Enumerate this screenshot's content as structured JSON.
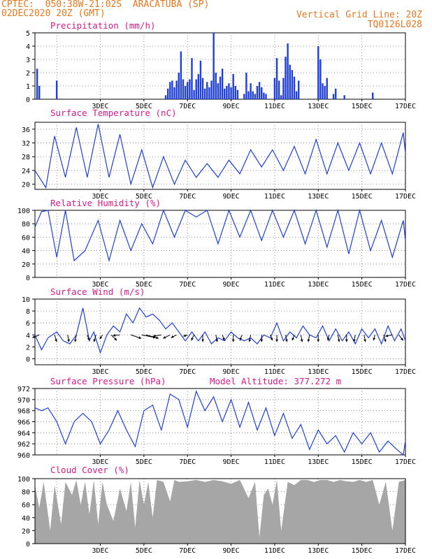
{
  "header": {
    "line1": "CPTEC:  050:38W-21:02S  ARACATUBA (SP)",
    "line2": "02DEC2020 20Z (GMT)",
    "right1": "Vertical Grid Line: 20Z",
    "right2": "TQ0126L028"
  },
  "colors": {
    "line": "#1f3fd6",
    "bar": "#1f3fd6",
    "cloud": "#a6a6a6",
    "title": "#d81b8a",
    "header": "#e8781e"
  },
  "chart_data": [
    {
      "id": "precip",
      "type": "bar",
      "title": "Precipitation (mm/h)",
      "ylim": [
        0,
        5
      ],
      "yticks": [
        0,
        1,
        2,
        3,
        4,
        5
      ],
      "xticks": [
        "3DEC",
        "5DEC",
        "7DEC",
        "9DEC",
        "11DEC",
        "13DEC",
        "15DEC",
        "17DEC"
      ],
      "x": [
        0.1,
        0.2,
        1.0,
        6.0,
        6.1,
        6.2,
        6.3,
        6.4,
        6.5,
        6.6,
        6.7,
        6.8,
        6.9,
        7.0,
        7.1,
        7.2,
        7.3,
        7.4,
        7.5,
        7.6,
        7.7,
        7.8,
        7.9,
        8.0,
        8.1,
        8.2,
        8.3,
        8.4,
        8.5,
        8.6,
        8.7,
        8.8,
        8.9,
        9.0,
        9.1,
        9.2,
        9.3,
        9.6,
        9.7,
        9.8,
        9.9,
        10.0,
        10.1,
        10.2,
        10.3,
        10.4,
        10.5,
        10.6,
        11.0,
        11.1,
        11.2,
        11.3,
        11.4,
        11.5,
        11.6,
        11.7,
        11.8,
        11.9,
        12.0,
        12.1,
        13.0,
        13.1,
        13.2,
        13.3,
        13.4,
        13.7,
        13.8,
        14.2,
        15.5
      ],
      "values": [
        2.3,
        1.0,
        1.4,
        0.3,
        0.8,
        1.3,
        1.4,
        0.9,
        1.4,
        2.0,
        3.6,
        1.5,
        1.0,
        1.3,
        1.5,
        3.1,
        0.7,
        1.5,
        1.9,
        2.9,
        1.6,
        0.8,
        1.3,
        0.9,
        1.4,
        5.0,
        2.0,
        1.2,
        1.7,
        2.3,
        0.8,
        1.0,
        1.2,
        0.9,
        1.9,
        1.0,
        0.7,
        0.4,
        2.0,
        0.6,
        1.2,
        0.6,
        0.4,
        1.0,
        1.3,
        0.9,
        0.5,
        0.4,
        1.6,
        3.1,
        1.4,
        0.3,
        1.6,
        3.2,
        4.2,
        2.6,
        2.2,
        1.7,
        0.6,
        1.4,
        4.0,
        3.0,
        1.2,
        1.0,
        1.6,
        0.4,
        0.8,
        0.3,
        0.5
      ]
    },
    {
      "id": "temp",
      "type": "line",
      "title": "Surface Temperature (nC)",
      "ylim": [
        18.5,
        38
      ],
      "yticks": [
        20,
        24,
        28,
        32,
        36
      ],
      "xticks": [
        "3DEC",
        "5DEC",
        "7DEC",
        "9DEC",
        "11DEC",
        "13DEC",
        "15DEC",
        "17DEC"
      ],
      "series": [
        {
          "x": [
            0,
            0.5,
            0.9,
            1.4,
            1.9,
            2.4,
            2.9,
            3.4,
            3.9,
            4.4,
            4.9,
            5.4,
            5.9,
            6.4,
            6.9,
            7.4,
            7.9,
            8.4,
            8.9,
            9.4,
            9.9,
            10.4,
            10.9,
            11.4,
            11.9,
            12.4,
            12.9,
            13.4,
            13.9,
            14.4,
            14.9,
            15.4,
            15.9,
            16.4,
            16.9,
            17.0
          ],
          "y": [
            24,
            19,
            34,
            22,
            36.5,
            22,
            37.5,
            22,
            34.5,
            20,
            30,
            19,
            28,
            20,
            27,
            22,
            26,
            22,
            27,
            23,
            30,
            25,
            30,
            24,
            31,
            23,
            33,
            23,
            32,
            24,
            32,
            23,
            32,
            23,
            35,
            29
          ]
        }
      ]
    },
    {
      "id": "rh",
      "type": "line",
      "title": "Relative Humidity (%)",
      "ylim": [
        0,
        100
      ],
      "yticks": [
        0,
        20,
        40,
        60,
        80,
        100
      ],
      "xticks": [
        "3DEC",
        "5DEC",
        "7DEC",
        "9DEC",
        "11DEC",
        "13DEC",
        "15DEC",
        "17DEC"
      ],
      "series": [
        {
          "x": [
            0,
            0.3,
            0.6,
            1.0,
            1.4,
            1.8,
            2.3,
            2.9,
            3.4,
            3.9,
            4.4,
            4.9,
            5.4,
            5.9,
            6.4,
            6.9,
            7.4,
            7.9,
            8.4,
            8.9,
            9.4,
            9.9,
            10.4,
            10.9,
            11.4,
            11.9,
            12.4,
            12.9,
            13.4,
            13.9,
            14.4,
            14.9,
            15.4,
            15.9,
            16.4,
            16.9,
            17.0
          ],
          "y": [
            75,
            98,
            100,
            30,
            100,
            25,
            40,
            85,
            25,
            85,
            40,
            80,
            50,
            100,
            60,
            100,
            90,
            100,
            50,
            100,
            60,
            100,
            55,
            100,
            60,
            100,
            50,
            100,
            45,
            100,
            35,
            100,
            40,
            85,
            30,
            85,
            55
          ]
        }
      ]
    },
    {
      "id": "wind",
      "type": "line",
      "title": "Surface Wind (m/s)",
      "ylim": [
        -1,
        10
      ],
      "yticks": [
        0,
        2,
        4,
        6,
        8,
        10
      ],
      "xticks": [
        "3DEC",
        "5DEC",
        "7DEC",
        "9DEC",
        "11DEC",
        "13DEC",
        "15DEC",
        "17DEC"
      ],
      "series": [
        {
          "x": [
            0,
            0.3,
            0.6,
            1.0,
            1.3,
            1.6,
            1.9,
            2.2,
            2.5,
            2.7,
            3.0,
            3.3,
            3.6,
            3.9,
            4.2,
            4.5,
            4.8,
            5.1,
            5.4,
            5.7,
            6.0,
            6.3,
            6.6,
            6.9,
            7.2,
            7.5,
            7.8,
            8.1,
            8.4,
            8.7,
            9.0,
            9.3,
            9.6,
            9.9,
            10.2,
            10.5,
            10.8,
            11.1,
            11.4,
            11.7,
            12.0,
            12.3,
            12.6,
            12.9,
            13.2,
            13.5,
            13.8,
            14.1,
            14.4,
            14.7,
            15.0,
            15.3,
            15.6,
            15.9,
            16.2,
            16.5,
            16.8,
            17.0
          ],
          "y": [
            4.0,
            1.5,
            3.5,
            4.5,
            3.0,
            2.5,
            4.0,
            8.5,
            3.0,
            4.5,
            1.0,
            4.0,
            5.5,
            4.5,
            7.5,
            6.0,
            8.5,
            7.0,
            7.5,
            6.5,
            5.0,
            6.0,
            4.5,
            3.0,
            4.5,
            3.0,
            4.5,
            2.5,
            3.5,
            3.0,
            4.5,
            3.5,
            3.0,
            3.5,
            2.5,
            4.0,
            3.5,
            6.0,
            3.0,
            4.5,
            3.5,
            5.5,
            4.0,
            3.5,
            5.5,
            3.0,
            5.0,
            3.0,
            4.5,
            2.5,
            5.0,
            3.5,
            5.0,
            2.5,
            5.5,
            3.0,
            5.0,
            3.0
          ]
        }
      ],
      "arrows": {
        "x": [
          0.2,
          0.9,
          1.5,
          1.9,
          2.4,
          2.8,
          3.1,
          3.5,
          3.9,
          4.4,
          4.9,
          5.1,
          5.8,
          6.2,
          6.5,
          7.0,
          7.3,
          7.7,
          8.3,
          8.6,
          9.1,
          9.5,
          9.9,
          10.4,
          10.8,
          11.1,
          11.5,
          11.9,
          12.2,
          12.6,
          13.0,
          13.5,
          13.9,
          14.3,
          14.7,
          15.1,
          15.6,
          16.0,
          16.4,
          16.7
        ],
        "u": [
          -1.0,
          0.3,
          0.2,
          -0.2,
          0.3,
          -0.3,
          -0.4,
          0.8,
          -1.0,
          1.5,
          2.0,
          1.8,
          -1.2,
          -1.0,
          -0.8,
          -0.6,
          -0.4,
          0,
          0.2,
          0.3,
          0,
          -0.3,
          -0.2,
          0,
          0.3,
          0,
          0.2,
          -0.3,
          0.2,
          -0.2,
          0,
          -0.2,
          0.2,
          0,
          -0.2,
          0.2,
          -0.2,
          0.3,
          -1.0,
          0.6
        ],
        "v": [
          -0.4,
          -1.0,
          -1.0,
          -1.0,
          -0.8,
          -1.0,
          -0.6,
          -0.8,
          -0.1,
          -0.5,
          -0.4,
          -0.5,
          -0.2,
          -0.5,
          -0.4,
          -0.2,
          -0.8,
          -1.0,
          -1.0,
          -0.8,
          -1.0,
          -0.8,
          -1.0,
          -1.0,
          -0.8,
          -1.0,
          -1.0,
          -0.8,
          -1.0,
          -1.0,
          -1.0,
          -0.8,
          -1.0,
          -1.0,
          -1.0,
          -1.0,
          -0.8,
          -1.0,
          -0.2,
          -0.8
        ]
      }
    },
    {
      "id": "pressure",
      "type": "line",
      "title": "Surface Pressure (hPa)",
      "annotation": "Model Altitude: 377.272 m",
      "ylim": [
        960,
        972
      ],
      "yticks": [
        960,
        962,
        964,
        966,
        968,
        970,
        972
      ],
      "xticks": [
        "3DEC",
        "5DEC",
        "7DEC",
        "9DEC",
        "11DEC",
        "13DEC",
        "15DEC",
        "17DEC"
      ],
      "series": [
        {
          "x": [
            0,
            0.3,
            0.6,
            1.0,
            1.4,
            1.8,
            2.2,
            2.6,
            3.0,
            3.4,
            3.8,
            4.2,
            4.6,
            5.0,
            5.4,
            5.8,
            6.2,
            6.6,
            7.0,
            7.4,
            7.8,
            8.2,
            8.6,
            9.0,
            9.4,
            9.8,
            10.2,
            10.6,
            11.0,
            11.4,
            11.8,
            12.2,
            12.6,
            13.0,
            13.4,
            13.8,
            14.2,
            14.6,
            15.0,
            15.4,
            15.8,
            16.2,
            16.6,
            16.9,
            17.0
          ],
          "y": [
            968.5,
            968,
            968.5,
            966,
            962,
            966,
            967.5,
            966,
            962,
            964.5,
            968,
            964.5,
            961.5,
            968,
            969,
            964.5,
            971,
            970,
            965,
            971.5,
            968,
            970.5,
            966,
            970,
            965,
            969.5,
            964.5,
            968.5,
            963.5,
            967.5,
            963,
            965.5,
            961,
            964.5,
            962,
            963.5,
            960.5,
            964,
            962,
            964,
            960.5,
            962.5,
            961,
            960,
            962.5
          ]
        }
      ]
    },
    {
      "id": "cloud",
      "type": "area",
      "title": "Cloud Cover (%)",
      "ylim": [
        0,
        100
      ],
      "yticks": [
        0,
        20,
        40,
        60,
        80,
        100
      ],
      "xticks": [
        "3DEC",
        "5DEC",
        "7DEC",
        "9DEC",
        "11DEC",
        "13DEC",
        "15DEC",
        "17DEC"
      ],
      "series": [
        {
          "x": [
            0,
            0.2,
            0.4,
            0.7,
            0.9,
            1.2,
            1.4,
            1.7,
            1.9,
            2.1,
            2.3,
            2.5,
            2.7,
            2.9,
            3.1,
            3.3,
            3.6,
            3.9,
            4.2,
            4.4,
            4.6,
            4.8,
            5.0,
            5.2,
            5.4,
            5.6,
            5.9,
            6.2,
            6.4,
            6.6,
            7.0,
            7.4,
            7.8,
            8.2,
            8.6,
            9.0,
            9.4,
            9.8,
            10.1,
            10.3,
            10.5,
            10.7,
            10.9,
            11.1,
            11.3,
            11.6,
            11.9,
            12.2,
            12.5,
            12.8,
            13.1,
            13.4,
            13.7,
            14.0,
            14.3,
            14.6,
            14.9,
            15.2,
            15.5,
            15.8,
            16.1,
            16.4,
            16.7,
            17.0
          ],
          "y": [
            90,
            55,
            95,
            20,
            90,
            30,
            95,
            75,
            98,
            60,
            95,
            45,
            98,
            30,
            95,
            60,
            35,
            85,
            50,
            95,
            25,
            98,
            60,
            95,
            40,
            98,
            95,
            65,
            98,
            95,
            96,
            98,
            95,
            98,
            96,
            92,
            98,
            70,
            95,
            10,
            75,
            85,
            60,
            98,
            20,
            95,
            90,
            98,
            98,
            95,
            98,
            98,
            95,
            98,
            96,
            95,
            98,
            95,
            98,
            60,
            95,
            20,
            95,
            98
          ]
        }
      ]
    }
  ]
}
